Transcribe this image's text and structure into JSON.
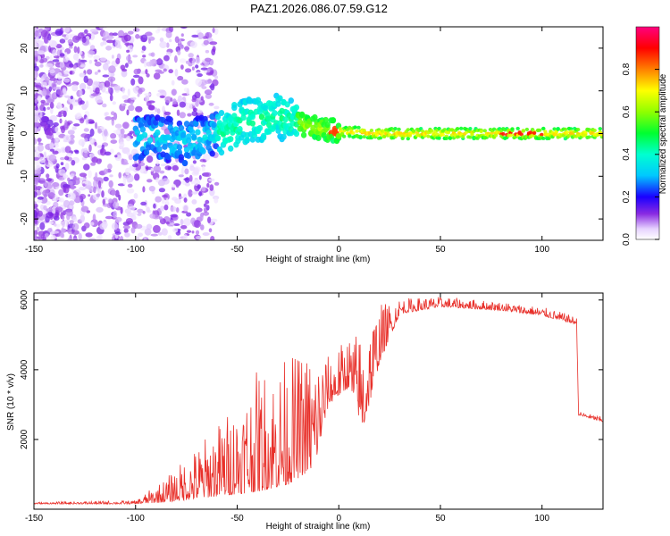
{
  "title": "PAZ1.2026.086.07.59.G12",
  "colors": {
    "line": "#e8302a",
    "axis": "#000000"
  },
  "chart_data": [
    {
      "type": "heatmap",
      "name": "spectrogram",
      "xlabel": "Height of straight line (km)",
      "ylabel": "Frequency (Hz)",
      "xlim": [
        -150,
        130
      ],
      "ylim": [
        -25,
        25
      ],
      "xticks": [
        -150,
        -100,
        -50,
        0,
        50,
        100
      ],
      "yticks": [
        -20,
        -10,
        0,
        10,
        20
      ],
      "colorbar": {
        "label": "Normalized spectral amplitude",
        "range": [
          0,
          1
        ],
        "ticks": [
          0.0,
          0.2,
          0.4,
          0.6,
          0.8
        ]
      },
      "ridge": [
        {
          "x": -150,
          "f": 0
        },
        {
          "x": -90,
          "f": -1
        },
        {
          "x": -75,
          "f": -2
        },
        {
          "x": -60,
          "f": 0
        },
        {
          "x": -45,
          "f": 3
        },
        {
          "x": -30,
          "f": 4
        },
        {
          "x": -15,
          "f": 1.5
        },
        {
          "x": 0,
          "f": 0.5
        },
        {
          "x": 20,
          "f": 0
        },
        {
          "x": 60,
          "f": 0
        },
        {
          "x": 130,
          "f": 0
        }
      ]
    },
    {
      "type": "line",
      "name": "snr",
      "xlabel": "Height of straight line (km)",
      "ylabel": "SNR (10 * v/v)",
      "xlim": [
        -150,
        130
      ],
      "ylim": [
        0,
        6200
      ],
      "xticks": [
        -150,
        -100,
        -50,
        0,
        50,
        100
      ],
      "yticks": [
        2000,
        4000,
        6000
      ],
      "envelope": [
        {
          "x": -150,
          "base": 150,
          "peak": 200
        },
        {
          "x": -100,
          "base": 150,
          "peak": 250
        },
        {
          "x": -85,
          "base": 200,
          "peak": 900
        },
        {
          "x": -70,
          "base": 300,
          "peak": 1800
        },
        {
          "x": -55,
          "base": 400,
          "peak": 2800
        },
        {
          "x": -40,
          "base": 500,
          "peak": 4000
        },
        {
          "x": -25,
          "base": 700,
          "peak": 4400
        },
        {
          "x": -12,
          "base": 1200,
          "peak": 4700
        },
        {
          "x": -5,
          "base": 3000,
          "peak": 4400
        },
        {
          "x": 5,
          "base": 3500,
          "peak": 5000
        },
        {
          "x": 12,
          "base": 2300,
          "peak": 5200
        },
        {
          "x": 20,
          "base": 4200,
          "peak": 5900
        },
        {
          "x": 30,
          "base": 5600,
          "peak": 6050
        },
        {
          "x": 50,
          "base": 5800,
          "peak": 6100
        },
        {
          "x": 80,
          "base": 5700,
          "peak": 5950
        },
        {
          "x": 100,
          "base": 5550,
          "peak": 5800
        },
        {
          "x": 110,
          "base": 5400,
          "peak": 5650
        },
        {
          "x": 117,
          "base": 5300,
          "peak": 5500
        },
        {
          "x": 118,
          "base": 2700,
          "peak": 2800
        },
        {
          "x": 130,
          "base": 2500,
          "peak": 2650
        }
      ]
    }
  ]
}
